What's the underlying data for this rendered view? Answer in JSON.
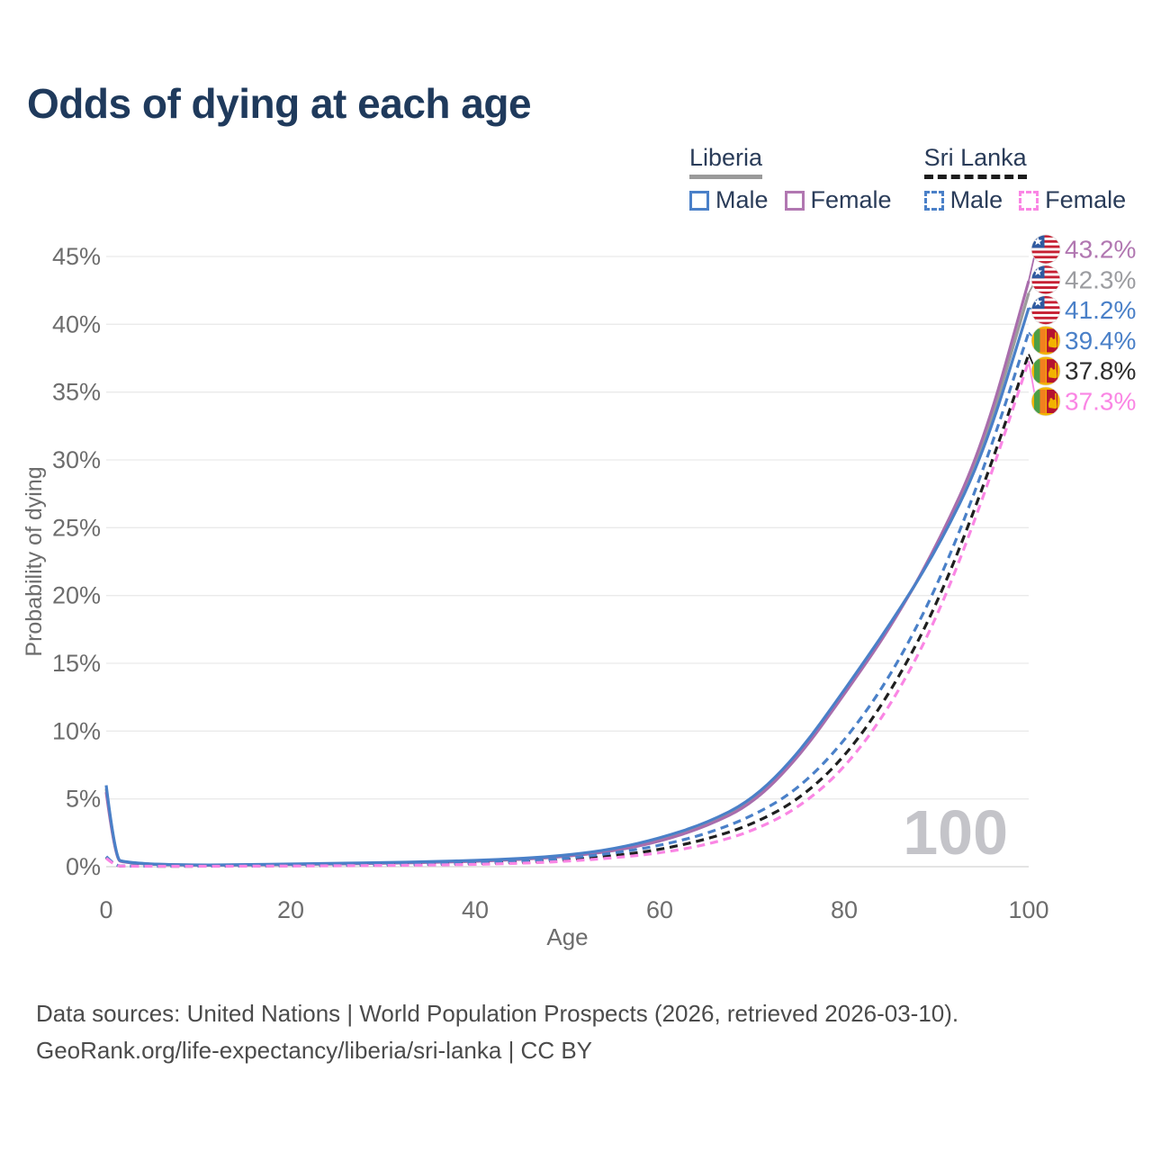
{
  "title": "Odds of dying at each age",
  "watermark": {
    "age": "100"
  },
  "legend": {
    "groups": [
      {
        "label": "Liberia",
        "line_style": "solid",
        "underline_color": "#9a9a9a",
        "items": [
          {
            "label": "Male",
            "color": "#4a80c8"
          },
          {
            "label": "Female",
            "color": "#b177b1"
          }
        ]
      },
      {
        "label": "Sri Lanka",
        "line_style": "dashed",
        "underline_color": "#1c1c1c",
        "items": [
          {
            "label": "Male",
            "color": "#4a80c8"
          },
          {
            "label": "Female",
            "color": "#fa86e4"
          }
        ]
      }
    ]
  },
  "axes": {
    "y": {
      "title": "Probability of dying",
      "ticks": [
        "0%",
        "5%",
        "10%",
        "15%",
        "20%",
        "25%",
        "30%",
        "35%",
        "40%",
        "45%"
      ],
      "tick_values": [
        0,
        5,
        10,
        15,
        20,
        25,
        30,
        35,
        40,
        45
      ]
    },
    "x": {
      "title": "Age",
      "ticks": [
        "0",
        "20",
        "40",
        "60",
        "80",
        "100"
      ],
      "tick_values": [
        0,
        20,
        40,
        60,
        80,
        100
      ]
    }
  },
  "chart_data": {
    "type": "line",
    "xlabel": "Age",
    "ylabel": "Probability of dying",
    "xlim": [
      0,
      100
    ],
    "ylim": [
      0,
      45
    ],
    "grid": true,
    "legend_position": "top-right",
    "ages": [
      0,
      1,
      2,
      5,
      10,
      15,
      20,
      25,
      30,
      35,
      40,
      45,
      50,
      55,
      60,
      65,
      70,
      75,
      80,
      85,
      90,
      95,
      100
    ],
    "series": [
      {
        "id": "liberia-both",
        "country": "Liberia",
        "sex": "Both",
        "style": "solid",
        "color": "#9b9b9b",
        "label_color": "#9b9ca0",
        "flag": "liberia",
        "end_label": "42.3%",
        "label_slot": 1,
        "values": [
          5.75,
          0.52,
          0.34,
          0.17,
          0.11,
          0.13,
          0.18,
          0.22,
          0.27,
          0.34,
          0.43,
          0.56,
          0.8,
          1.22,
          1.97,
          3.07,
          4.75,
          8.15,
          12.85,
          17.7,
          23.45,
          30.6,
          42.3
        ]
      },
      {
        "id": "liberia-female",
        "country": "Liberia",
        "sex": "Female",
        "style": "solid",
        "color": "#a96dac",
        "label_color": "#b177b1",
        "flag": "liberia",
        "end_label": "43.2%",
        "label_slot": 0,
        "values": [
          5.5,
          0.5,
          0.32,
          0.16,
          0.1,
          0.12,
          0.16,
          0.2,
          0.25,
          0.31,
          0.4,
          0.53,
          0.76,
          1.15,
          1.85,
          2.95,
          4.6,
          8.0,
          12.7,
          17.6,
          23.6,
          31.0,
          43.2
        ]
      },
      {
        "id": "liberia-male",
        "country": "Liberia",
        "sex": "Male",
        "style": "solid",
        "color": "#4a80c8",
        "label_color": "#4a80c8",
        "flag": "liberia",
        "end_label": "41.2%",
        "label_slot": 2,
        "values": [
          6.0,
          0.55,
          0.35,
          0.18,
          0.12,
          0.15,
          0.2,
          0.25,
          0.3,
          0.37,
          0.46,
          0.6,
          0.85,
          1.3,
          2.1,
          3.2,
          4.9,
          8.3,
          13.0,
          17.9,
          23.3,
          30.2,
          41.2
        ]
      },
      {
        "id": "srilanka-both",
        "country": "Sri Lanka",
        "sex": "Both",
        "style": "dashed",
        "color": "#1f1f1f",
        "label_color": "#2d2d2d",
        "flag": "sri-lanka",
        "end_label": "37.8%",
        "label_slot": 4,
        "values": [
          0.68,
          0.065,
          0.045,
          0.035,
          0.035,
          0.05,
          0.07,
          0.09,
          0.12,
          0.16,
          0.22,
          0.32,
          0.5,
          0.8,
          1.25,
          2.0,
          3.1,
          4.9,
          8.0,
          12.8,
          19.2,
          27.8,
          37.8
        ]
      },
      {
        "id": "srilanka-male",
        "country": "Sri Lanka",
        "sex": "Male",
        "style": "dashed",
        "color": "#4a80c8",
        "label_color": "#4a80c8",
        "flag": "sri-lanka",
        "end_label": "39.4%",
        "label_slot": 3,
        "values": [
          0.75,
          0.07,
          0.05,
          0.04,
          0.04,
          0.06,
          0.09,
          0.12,
          0.15,
          0.2,
          0.27,
          0.4,
          0.62,
          1.0,
          1.55,
          2.4,
          3.7,
          5.7,
          9.2,
          14.0,
          20.5,
          29.0,
          39.4
        ]
      },
      {
        "id": "srilanka-female",
        "country": "Sri Lanka",
        "sex": "Female",
        "style": "dashed",
        "color": "#fa86e4",
        "label_color": "#fa86e4",
        "flag": "sri-lanka",
        "end_label": "37.3%",
        "label_slot": 5,
        "values": [
          0.62,
          0.06,
          0.04,
          0.03,
          0.03,
          0.04,
          0.05,
          0.07,
          0.09,
          0.12,
          0.17,
          0.25,
          0.4,
          0.65,
          1.0,
          1.6,
          2.6,
          4.3,
          7.2,
          11.8,
          18.2,
          27.0,
          37.3
        ]
      }
    ]
  },
  "footer": {
    "line1": "Data sources: United Nations | World Population Prospects (2026, retrieved 2026-03-10).",
    "line2": "GeoRank.org/life-expectancy/liberia/sri-lanka | CC BY"
  },
  "colors": {
    "title": "#1f3a5c",
    "legend_text": "#2a3c59",
    "tick_text": "#6d6d6d",
    "gridline": "#eaeaea",
    "axis_line": "#d4d4d4",
    "watermark": "#c4c4c9",
    "footer_text": "#4b4b4b",
    "liberia_male": "#4a80c8",
    "liberia_female": "#a96dac",
    "liberia_both": "#9b9b9b",
    "srilanka_male": "#4a80c8",
    "srilanka_female": "#fa86e4",
    "srilanka_both": "#1f1f1f"
  }
}
